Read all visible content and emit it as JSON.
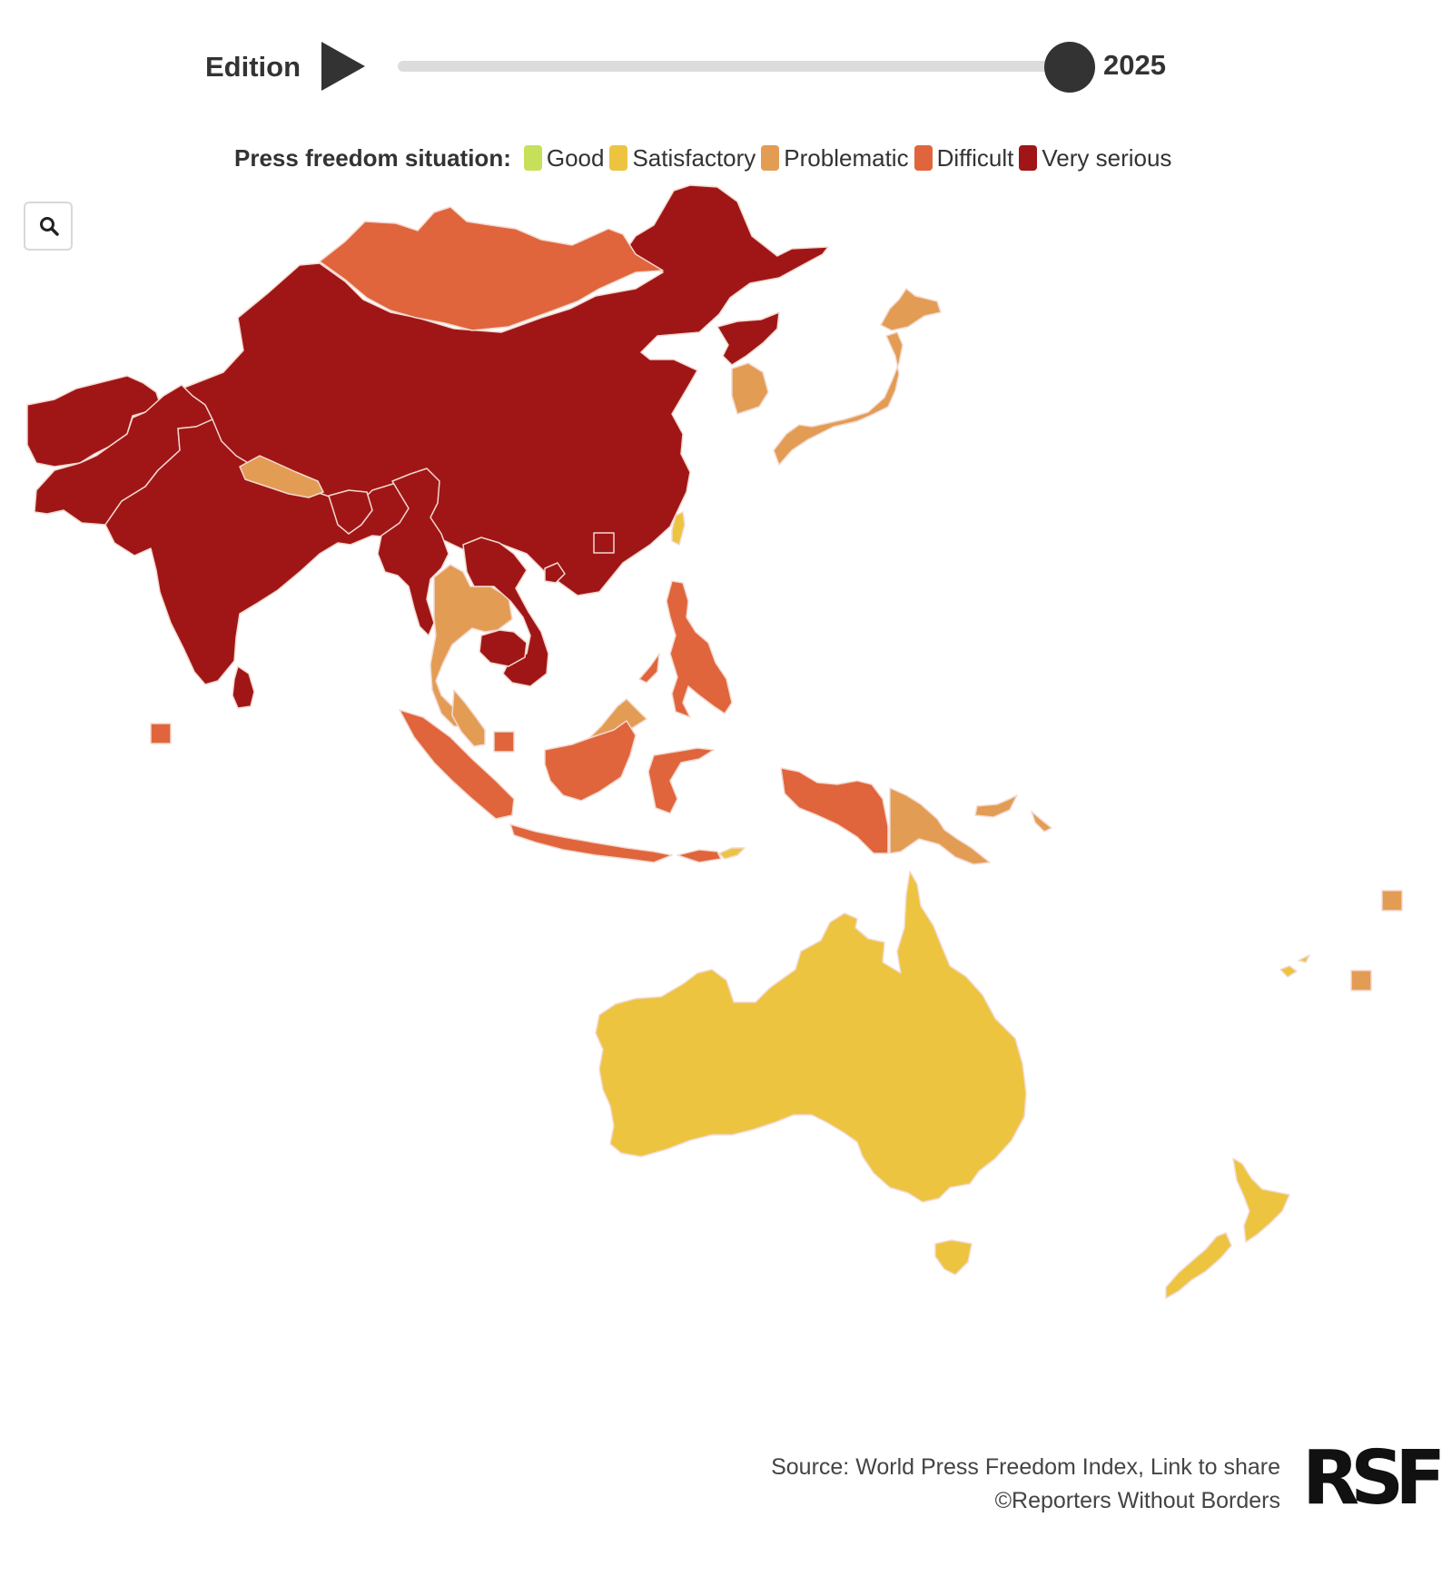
{
  "edition": {
    "label": "Edition",
    "year": "2025",
    "progress": 1.0
  },
  "legend": {
    "title": "Press freedom situation:",
    "items": [
      {
        "label": "Good",
        "color": "#c7e05a"
      },
      {
        "label": "Satisfactory",
        "color": "#ecc440"
      },
      {
        "label": "Problematic",
        "color": "#e39c54"
      },
      {
        "label": "Difficult",
        "color": "#e0653c"
      },
      {
        "label": "Very serious",
        "color": "#a01616"
      }
    ]
  },
  "map_regions": [
    {
      "name": "Mongolia",
      "status": "Difficult"
    },
    {
      "name": "China",
      "status": "Very serious"
    },
    {
      "name": "Afghanistan",
      "status": "Very serious"
    },
    {
      "name": "Pakistan",
      "status": "Very serious"
    },
    {
      "name": "India",
      "status": "Very serious"
    },
    {
      "name": "Nepal",
      "status": "Problematic"
    },
    {
      "name": "Myanmar",
      "status": "Very serious"
    },
    {
      "name": "Thailand",
      "status": "Problematic"
    },
    {
      "name": "Vietnam",
      "status": "Very serious"
    },
    {
      "name": "Cambodia",
      "status": "Very serious"
    },
    {
      "name": "Malaysia",
      "status": "Problematic"
    },
    {
      "name": "Indonesia",
      "status": "Difficult"
    },
    {
      "name": "Philippines",
      "status": "Difficult"
    },
    {
      "name": "Papua New Guinea",
      "status": "Problematic"
    },
    {
      "name": "Australia",
      "status": "Satisfactory"
    },
    {
      "name": "New Zealand",
      "status": "Satisfactory"
    },
    {
      "name": "Japan",
      "status": "Problematic"
    },
    {
      "name": "South Korea",
      "status": "Problematic"
    },
    {
      "name": "North Korea",
      "status": "Very serious"
    },
    {
      "name": "Taiwan",
      "status": "Satisfactory"
    },
    {
      "name": "Sri Lanka",
      "status": "Very serious"
    }
  ],
  "footer": {
    "source": "Source: World Press Freedom Index, Link to share",
    "copyright": "©Reporters Without Borders"
  },
  "logo": {
    "text": "RSF"
  },
  "icons": {
    "zoom": "search-icon",
    "play": "play-icon"
  }
}
